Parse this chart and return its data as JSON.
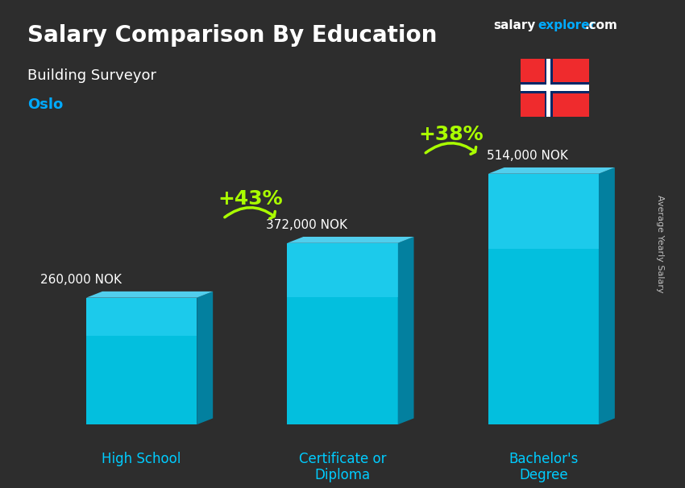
{
  "title_line1": "Salary Comparison By Education",
  "subtitle": "Building Surveyor",
  "city": "Oslo",
  "ylabel": "Average Yearly Salary",
  "categories": [
    "High School",
    "Certificate or\nDiploma",
    "Bachelor's\nDegree"
  ],
  "values": [
    260000,
    372000,
    514000
  ],
  "value_labels": [
    "260,000 NOK",
    "372,000 NOK",
    "514,000 NOK"
  ],
  "pct_labels": [
    "+43%",
    "+38%"
  ],
  "bar_color_top": "#00d4ff",
  "bar_color_bottom": "#0099cc",
  "bar_color_mid": "#00bbee",
  "background_color": "#1a1a2e",
  "title_color": "#ffffff",
  "subtitle_color": "#ffffff",
  "city_color": "#00aaff",
  "label_color": "#ffffff",
  "category_color": "#00ccff",
  "pct_color": "#aaff00",
  "arrow_color": "#aaff00",
  "salary_color": "#ffffff",
  "brand_salary": "salary",
  "brand_explorer": "explorer",
  "brand_com": ".com",
  "ylim": [
    0,
    620000
  ]
}
